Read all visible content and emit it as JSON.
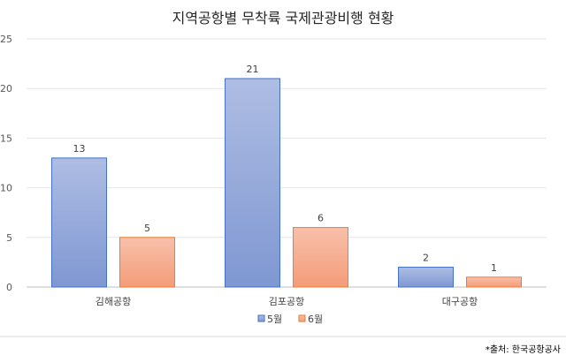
{
  "chart_data": {
    "type": "bar",
    "title": "지역공항별 무착륙 국제관광비행 현황",
    "categories": [
      "김해공항",
      "김포공항",
      "대구공항"
    ],
    "series": [
      {
        "name": "5월",
        "values": [
          13,
          21,
          2
        ],
        "color": "#8FA4D8",
        "stroke": "#4472C4"
      },
      {
        "name": "6월",
        "values": [
          5,
          6,
          1
        ],
        "color": "#F7A98A",
        "stroke": "#ED7D31"
      }
    ],
    "ylim": [
      0,
      25
    ],
    "yticks": [
      0,
      5,
      10,
      15,
      20,
      25
    ],
    "grid": true,
    "legend": "bottom",
    "source": "*출처: 한국공항공사"
  }
}
